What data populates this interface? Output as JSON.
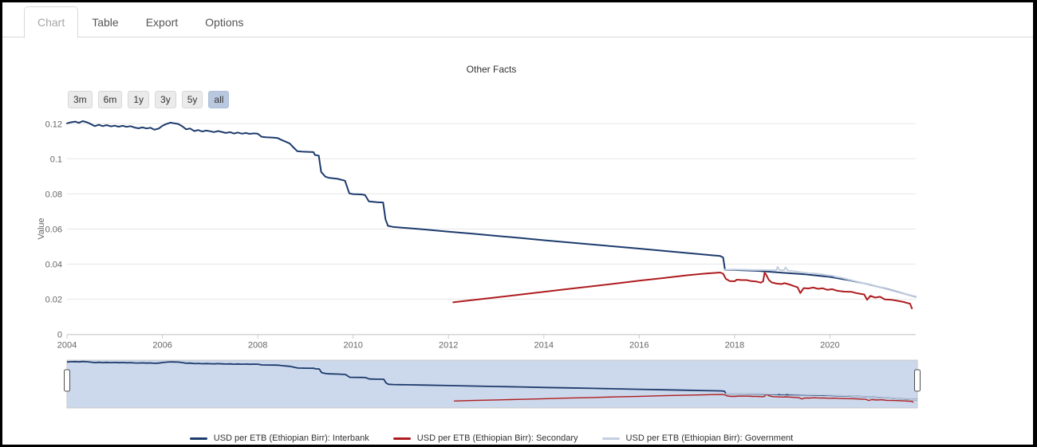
{
  "tabs": {
    "items": [
      {
        "label": "Chart",
        "active": true
      },
      {
        "label": "Table",
        "active": false
      },
      {
        "label": "Export",
        "active": false
      },
      {
        "label": "Options",
        "active": false
      }
    ]
  },
  "range_selector": {
    "buttons": [
      "3m",
      "6m",
      "1y",
      "3y",
      "5y",
      "all"
    ],
    "selected": "all"
  },
  "chart_data": {
    "type": "line",
    "title": "Other Facts",
    "xlabel": "",
    "ylabel": "Value",
    "xlim": [
      2004,
      2021.8
    ],
    "ylim": [
      0,
      0.1233
    ],
    "x_ticks": [
      2004,
      2006,
      2008,
      2010,
      2012,
      2014,
      2016,
      2018,
      2020
    ],
    "y_ticks": [
      0,
      0.02,
      0.04,
      0.06,
      0.08,
      0.1,
      0.12
    ],
    "grid": true,
    "legend_position": "bottom",
    "series": [
      {
        "name": "USD per ETB (Ethiopian Birr): Interbank",
        "color": "#1d3b6d",
        "points": [
          [
            2004.0,
            0.1202
          ],
          [
            2004.08,
            0.1208
          ],
          [
            2004.17,
            0.1212
          ],
          [
            2004.25,
            0.1205
          ],
          [
            2004.33,
            0.1215
          ],
          [
            2004.42,
            0.1208
          ],
          [
            2004.5,
            0.1198
          ],
          [
            2004.58,
            0.1186
          ],
          [
            2004.67,
            0.1194
          ],
          [
            2004.75,
            0.1186
          ],
          [
            2004.83,
            0.1192
          ],
          [
            2004.92,
            0.1185
          ],
          [
            2005.0,
            0.1189
          ],
          [
            2005.08,
            0.1183
          ],
          [
            2005.17,
            0.1188
          ],
          [
            2005.25,
            0.1182
          ],
          [
            2005.33,
            0.1186
          ],
          [
            2005.42,
            0.1178
          ],
          [
            2005.5,
            0.1174
          ],
          [
            2005.58,
            0.1179
          ],
          [
            2005.67,
            0.1173
          ],
          [
            2005.75,
            0.1177
          ],
          [
            2005.83,
            0.1166
          ],
          [
            2005.92,
            0.1172
          ],
          [
            2006.0,
            0.1188
          ],
          [
            2006.08,
            0.1198
          ],
          [
            2006.17,
            0.1206
          ],
          [
            2006.25,
            0.1202
          ],
          [
            2006.33,
            0.1199
          ],
          [
            2006.42,
            0.1185
          ],
          [
            2006.5,
            0.1168
          ],
          [
            2006.58,
            0.1173
          ],
          [
            2006.67,
            0.1158
          ],
          [
            2006.75,
            0.1164
          ],
          [
            2006.83,
            0.1156
          ],
          [
            2006.92,
            0.1161
          ],
          [
            2007.0,
            0.1157
          ],
          [
            2007.08,
            0.1152
          ],
          [
            2007.17,
            0.1158
          ],
          [
            2007.25,
            0.1153
          ],
          [
            2007.33,
            0.1147
          ],
          [
            2007.42,
            0.1152
          ],
          [
            2007.5,
            0.1144
          ],
          [
            2007.58,
            0.115
          ],
          [
            2007.67,
            0.1143
          ],
          [
            2007.75,
            0.1147
          ],
          [
            2007.83,
            0.1142
          ],
          [
            2007.92,
            0.1145
          ],
          [
            2008.0,
            0.1143
          ],
          [
            2008.08,
            0.1126
          ],
          [
            2008.17,
            0.1123
          ],
          [
            2008.33,
            0.1121
          ],
          [
            2008.42,
            0.1118
          ],
          [
            2008.5,
            0.1107
          ],
          [
            2008.58,
            0.1098
          ],
          [
            2008.67,
            0.1087
          ],
          [
            2008.75,
            0.1065
          ],
          [
            2008.83,
            0.1043
          ],
          [
            2008.92,
            0.1041
          ],
          [
            2009.0,
            0.104
          ],
          [
            2009.17,
            0.1038
          ],
          [
            2009.2,
            0.1022
          ],
          [
            2009.28,
            0.1018
          ],
          [
            2009.33,
            0.0925
          ],
          [
            2009.42,
            0.0898
          ],
          [
            2009.5,
            0.0891
          ],
          [
            2009.67,
            0.0886
          ],
          [
            2009.83,
            0.0875
          ],
          [
            2009.92,
            0.0803
          ],
          [
            2010.0,
            0.0799
          ],
          [
            2010.17,
            0.0797
          ],
          [
            2010.25,
            0.0794
          ],
          [
            2010.33,
            0.0757
          ],
          [
            2010.5,
            0.0753
          ],
          [
            2010.63,
            0.0751
          ],
          [
            2010.68,
            0.0655
          ],
          [
            2010.73,
            0.0618
          ],
          [
            2010.83,
            0.0612
          ],
          [
            2011.0,
            0.0608
          ],
          [
            2011.5,
            0.0597
          ],
          [
            2012.0,
            0.0585
          ],
          [
            2012.5,
            0.0573
          ],
          [
            2013.0,
            0.0561
          ],
          [
            2013.5,
            0.0549
          ],
          [
            2014.0,
            0.0536
          ],
          [
            2014.5,
            0.0524
          ],
          [
            2015.0,
            0.0512
          ],
          [
            2015.5,
            0.05
          ],
          [
            2016.0,
            0.0488
          ],
          [
            2016.5,
            0.0476
          ],
          [
            2017.0,
            0.0463
          ],
          [
            2017.5,
            0.0451
          ],
          [
            2017.7,
            0.0446
          ],
          [
            2017.76,
            0.0438
          ],
          [
            2017.8,
            0.0367
          ],
          [
            2018.0,
            0.0366
          ],
          [
            2018.5,
            0.0361
          ],
          [
            2019.0,
            0.0351
          ],
          [
            2019.5,
            0.0341
          ],
          [
            2020.0,
            0.0327
          ],
          [
            2020.4,
            0.0308
          ],
          [
            2020.8,
            0.0285
          ],
          [
            2021.2,
            0.0258
          ],
          [
            2021.6,
            0.0228
          ],
          [
            2021.8,
            0.0214
          ]
        ]
      },
      {
        "name": "USD per ETB (Ethiopian Birr): Secondary",
        "color": "#ae1c1f",
        "points": [
          [
            2012.1,
            0.0182
          ],
          [
            2012.5,
            0.0195
          ],
          [
            2013.0,
            0.021
          ],
          [
            2013.5,
            0.0226
          ],
          [
            2014.0,
            0.0242
          ],
          [
            2014.5,
            0.0258
          ],
          [
            2015.0,
            0.0273
          ],
          [
            2015.5,
            0.0289
          ],
          [
            2016.0,
            0.0305
          ],
          [
            2016.5,
            0.032
          ],
          [
            2017.0,
            0.0336
          ],
          [
            2017.4,
            0.0346
          ],
          [
            2017.7,
            0.0352
          ],
          [
            2017.76,
            0.0345
          ],
          [
            2017.82,
            0.0315
          ],
          [
            2017.9,
            0.0303
          ],
          [
            2018.0,
            0.0302
          ],
          [
            2018.05,
            0.0311
          ],
          [
            2018.15,
            0.0309
          ],
          [
            2018.25,
            0.0309
          ],
          [
            2018.35,
            0.0303
          ],
          [
            2018.45,
            0.0301
          ],
          [
            2018.55,
            0.0294
          ],
          [
            2018.6,
            0.0302
          ],
          [
            2018.63,
            0.0351
          ],
          [
            2018.66,
            0.0341
          ],
          [
            2018.72,
            0.0309
          ],
          [
            2018.78,
            0.0295
          ],
          [
            2018.88,
            0.0289
          ],
          [
            2018.98,
            0.0286
          ],
          [
            2019.05,
            0.0291
          ],
          [
            2019.15,
            0.0284
          ],
          [
            2019.25,
            0.0274
          ],
          [
            2019.32,
            0.0268
          ],
          [
            2019.38,
            0.0235
          ],
          [
            2019.45,
            0.0263
          ],
          [
            2019.55,
            0.0261
          ],
          [
            2019.65,
            0.0266
          ],
          [
            2019.75,
            0.0259
          ],
          [
            2019.85,
            0.0262
          ],
          [
            2019.95,
            0.0253
          ],
          [
            2020.05,
            0.0257
          ],
          [
            2020.15,
            0.0248
          ],
          [
            2020.3,
            0.0243
          ],
          [
            2020.45,
            0.0242
          ],
          [
            2020.55,
            0.0235
          ],
          [
            2020.65,
            0.023
          ],
          [
            2020.72,
            0.0227
          ],
          [
            2020.78,
            0.0196
          ],
          [
            2020.85,
            0.0219
          ],
          [
            2020.95,
            0.0209
          ],
          [
            2021.05,
            0.0214
          ],
          [
            2021.15,
            0.0199
          ],
          [
            2021.3,
            0.0196
          ],
          [
            2021.45,
            0.0189
          ],
          [
            2021.55,
            0.0184
          ],
          [
            2021.62,
            0.0178
          ],
          [
            2021.68,
            0.0175
          ],
          [
            2021.72,
            0.0147
          ]
        ]
      },
      {
        "name": "USD per ETB (Ethiopian Birr): Government",
        "color": "#c3cfe0",
        "points": [
          [
            2017.78,
            0.0368
          ],
          [
            2018.0,
            0.0369
          ],
          [
            2018.2,
            0.0368
          ],
          [
            2018.4,
            0.0366
          ],
          [
            2018.6,
            0.0366
          ],
          [
            2018.75,
            0.0365
          ],
          [
            2018.88,
            0.0365
          ],
          [
            2018.9,
            0.0384
          ],
          [
            2018.94,
            0.0366
          ],
          [
            2019.04,
            0.0365
          ],
          [
            2019.07,
            0.0381
          ],
          [
            2019.12,
            0.0363
          ],
          [
            2019.25,
            0.0359
          ],
          [
            2019.4,
            0.0353
          ],
          [
            2019.55,
            0.0348
          ],
          [
            2019.7,
            0.0346
          ],
          [
            2019.85,
            0.0341
          ],
          [
            2019.95,
            0.0336
          ],
          [
            2020.05,
            0.0334
          ],
          [
            2020.1,
            0.0329
          ],
          [
            2020.25,
            0.0322
          ],
          [
            2020.4,
            0.0311
          ],
          [
            2020.55,
            0.0301
          ],
          [
            2020.7,
            0.0291
          ],
          [
            2020.85,
            0.0283
          ],
          [
            2021.0,
            0.0272
          ],
          [
            2021.15,
            0.026
          ],
          [
            2021.3,
            0.0249
          ],
          [
            2021.45,
            0.0238
          ],
          [
            2021.6,
            0.0228
          ],
          [
            2021.7,
            0.0221
          ],
          [
            2021.8,
            0.0215
          ]
        ]
      }
    ]
  },
  "navigator": {
    "range": "all",
    "background": "#ccd8eb",
    "handle_fill": "#ffffff",
    "handle_stroke": "#4d4d4d"
  },
  "colors": {
    "grid": "#e6e6e6",
    "axis_line": "#cccccc",
    "tick_label": "#666666",
    "title_text": "#333333",
    "legend_text": "#333333"
  }
}
